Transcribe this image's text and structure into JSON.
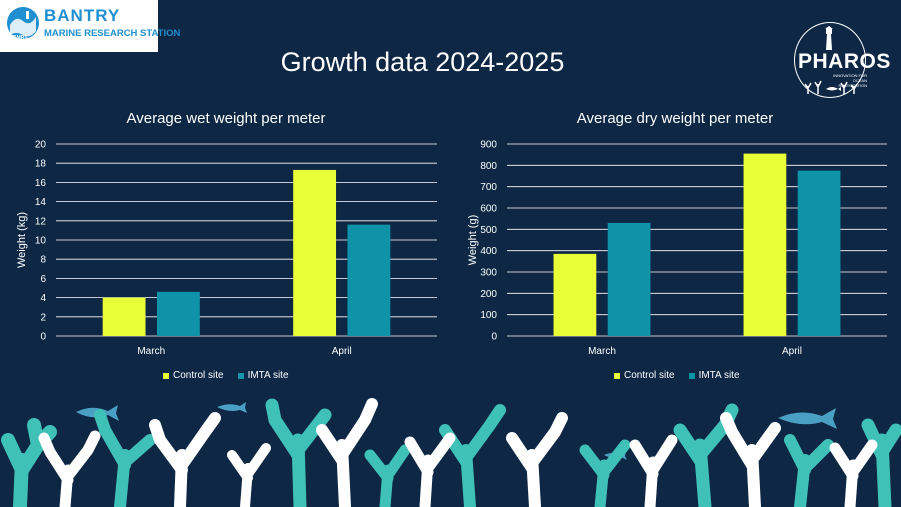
{
  "branding": {
    "left_logo_line1": "BANTRY",
    "left_logo_line2": "MARINE RESEARCH STATION",
    "left_logo_badge": "BMRS",
    "right_logo_word": "PHAROS",
    "right_logo_tagline": "INNOVATION FOR OCEAN RESTORATION"
  },
  "page_title": "Growth data 2024-2025",
  "colors": {
    "background": "#0d2744",
    "control_site": "#e8ff37",
    "imta_site": "#0e93a8",
    "grid": "#ffffff",
    "reef_white": "#ffffff",
    "reef_teal": "#3fc1b8",
    "fish": "#4a9fc4"
  },
  "chart_data": [
    {
      "type": "bar",
      "title": "Average wet weight per meter",
      "xlabel": "",
      "ylabel": "Weight (kg)",
      "categories": [
        "March",
        "April"
      ],
      "series": [
        {
          "name": "Control site",
          "values": [
            4.0,
            17.3
          ]
        },
        {
          "name": "IMTA site",
          "values": [
            4.6,
            11.6
          ]
        }
      ],
      "ylim": [
        0,
        20
      ],
      "yticks": [
        0,
        2,
        4,
        6,
        8,
        10,
        12,
        14,
        16,
        18,
        20
      ],
      "grid": true,
      "legend": "bottom"
    },
    {
      "type": "bar",
      "title": "Average dry weight per meter",
      "xlabel": "",
      "ylabel": "Weight (g)",
      "categories": [
        "March",
        "April"
      ],
      "series": [
        {
          "name": "Control site",
          "values": [
            385,
            855
          ]
        },
        {
          "name": "IMTA site",
          "values": [
            530,
            775
          ]
        }
      ],
      "ylim": [
        0,
        900
      ],
      "yticks": [
        0,
        100,
        200,
        300,
        400,
        500,
        600,
        700,
        800,
        900
      ],
      "grid": true,
      "legend": "bottom"
    }
  ]
}
